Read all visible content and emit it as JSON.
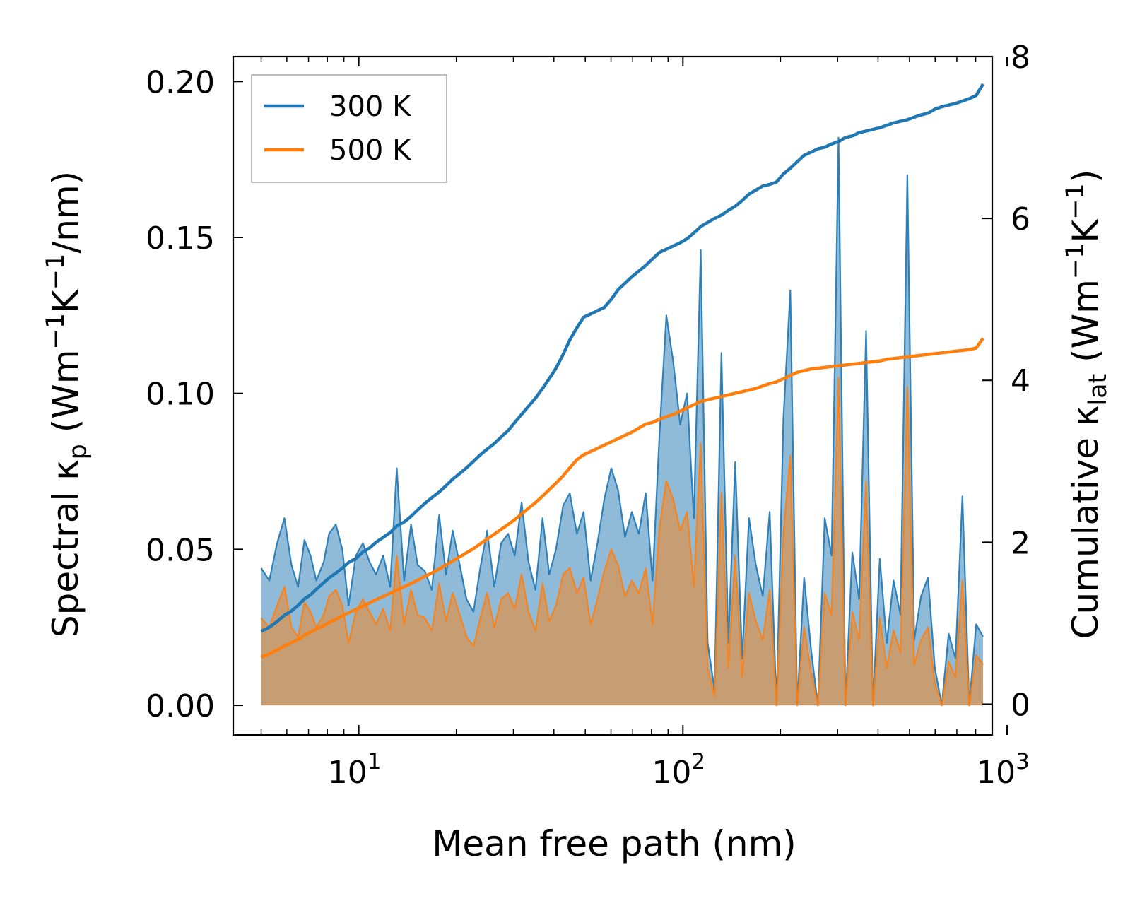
{
  "chart_data": {
    "type": "area+line",
    "xlabel": "Mean free path (nm)",
    "ylabel_left": {
      "main": "Spectral κ",
      "sub": "p",
      "units_prefix": " (Wm",
      "sup1": "−1",
      "mid": "K",
      "sup2": "−1",
      "units_suffix": "/nm)"
    },
    "ylabel_right": {
      "main": "Cumulative κ",
      "sub": "lat",
      "units_prefix": " (Wm",
      "sup1": "−1",
      "mid": "K",
      "sup2": "−1",
      "units_suffix": ")"
    },
    "xscale": "log",
    "xlim": [
      4.1,
      900
    ],
    "ylim_left": [
      -0.0095,
      0.208
    ],
    "ylim_right": [
      -0.38,
      8.0
    ],
    "x_ticks": [
      {
        "value": 10,
        "base": "10",
        "exp": "1"
      },
      {
        "value": 100,
        "base": "10",
        "exp": "2"
      },
      {
        "value": 1000,
        "base": "10",
        "exp": "3"
      }
    ],
    "y_ticks_left": [
      "0.00",
      "0.05",
      "0.10",
      "0.15",
      "0.20"
    ],
    "y_ticks_left_values": [
      0,
      0.05,
      0.1,
      0.15,
      0.2
    ],
    "y_ticks_right": [
      "0",
      "2",
      "4",
      "6",
      "8"
    ],
    "y_ticks_right_values": [
      0,
      2,
      4,
      6,
      8
    ],
    "legend": {
      "position": "top-left",
      "entries": [
        {
          "label": "300 K",
          "color": "#1f77b4"
        },
        {
          "label": "500 K",
          "color": "#ff7f0e"
        }
      ]
    },
    "series": [
      {
        "name": "300 K",
        "color": "#1f77b4",
        "fill_color": "#1f77b4",
        "spectral": {
          "x": [
            5.0,
            5.3,
            5.6,
            5.9,
            6.2,
            6.5,
            6.8,
            7.1,
            7.4,
            7.8,
            8.1,
            8.5,
            8.9,
            9.3,
            9.8,
            10.3,
            10.8,
            11.3,
            11.9,
            12.5,
            13.1,
            13.8,
            14.5,
            15.2,
            16.0,
            16.8,
            17.7,
            18.6,
            19.5,
            20.5,
            21.5,
            22.6,
            23.7,
            24.9,
            26.2,
            27.5,
            28.9,
            30.3,
            31.8,
            33.4,
            35.1,
            36.9,
            38.7,
            40.6,
            42.7,
            44.8,
            47.1,
            49.4,
            51.9,
            54.5,
            57.2,
            60.1,
            63.1,
            66.3,
            69.6,
            73.1,
            76.8,
            80.6,
            84.7,
            88.9,
            93.4,
            98.1,
            103.0,
            108.1,
            113.5,
            119.2,
            125.2,
            131.5,
            138.1,
            145.0,
            152.3,
            159.9,
            167.9,
            176.3,
            185.2,
            194.5,
            204.2,
            214.5,
            225.2,
            236.5,
            248.4,
            260.8,
            273.9,
            287.6,
            302.0,
            317.2,
            333.1,
            349.8,
            367.3,
            385.7,
            405.0,
            425.3,
            446.6,
            469.0,
            492.5,
            517.1,
            543.0,
            570.2,
            598.8,
            628.8,
            660.3,
            693.4,
            728.1,
            764.6,
            802.9,
            843.1
          ],
          "y": [
            0.044,
            0.04,
            0.052,
            0.06,
            0.045,
            0.038,
            0.053,
            0.048,
            0.04,
            0.046,
            0.055,
            0.058,
            0.05,
            0.032,
            0.048,
            0.052,
            0.046,
            0.042,
            0.048,
            0.038,
            0.076,
            0.04,
            0.058,
            0.045,
            0.043,
            0.037,
            0.061,
            0.042,
            0.056,
            0.045,
            0.034,
            0.03,
            0.044,
            0.056,
            0.038,
            0.052,
            0.055,
            0.048,
            0.065,
            0.046,
            0.037,
            0.06,
            0.042,
            0.05,
            0.064,
            0.068,
            0.055,
            0.062,
            0.04,
            0.052,
            0.066,
            0.076,
            0.069,
            0.054,
            0.062,
            0.055,
            0.068,
            0.04,
            0.087,
            0.125,
            0.11,
            0.09,
            0.1,
            0.06,
            0.146,
            0.02,
            0.005,
            0.113,
            0.02,
            0.078,
            0.015,
            0.06,
            0.045,
            0.035,
            0.062,
            0.0,
            0.092,
            0.133,
            0.0,
            0.041,
            0.018,
            0.0,
            0.06,
            0.048,
            0.182,
            0.0,
            0.049,
            0.034,
            0.12,
            0.0,
            0.047,
            0.02,
            0.04,
            0.029,
            0.17,
            0.021,
            0.035,
            0.041,
            0.012,
            0.0,
            0.023,
            0.015,
            0.067,
            0.0,
            0.026,
            0.022
          ]
        },
        "cumulative": {
          "x": [
            5.0,
            5.3,
            5.6,
            5.9,
            6.2,
            6.5,
            6.8,
            7.1,
            7.4,
            7.8,
            8.1,
            8.5,
            8.9,
            9.3,
            9.8,
            10.3,
            10.8,
            11.3,
            11.9,
            12.5,
            13.1,
            13.8,
            14.5,
            15.2,
            16.0,
            16.8,
            17.7,
            18.6,
            19.5,
            20.5,
            21.5,
            22.6,
            23.7,
            24.9,
            26.2,
            27.5,
            28.9,
            30.3,
            31.8,
            33.4,
            35.1,
            36.9,
            38.7,
            40.6,
            42.7,
            44.8,
            47.1,
            49.4,
            51.9,
            54.5,
            57.2,
            60.1,
            63.1,
            66.3,
            69.6,
            73.1,
            76.8,
            80.6,
            84.7,
            88.9,
            93.4,
            98.1,
            103.0,
            108.1,
            113.5,
            119.2,
            125.2,
            131.5,
            138.1,
            145.0,
            152.3,
            159.9,
            167.9,
            176.3,
            185.2,
            194.5,
            204.2,
            214.5,
            225.2,
            236.5,
            248.4,
            260.8,
            273.9,
            287.6,
            302.0,
            317.2,
            333.1,
            349.8,
            367.3,
            385.7,
            405.0,
            425.3,
            446.6,
            469.0,
            492.5,
            517.1,
            543.0,
            570.2,
            598.8,
            628.8,
            660.3,
            693.4,
            728.1,
            764.6,
            802.9,
            843.1
          ],
          "y": [
            0.9,
            0.95,
            1.02,
            1.1,
            1.15,
            1.22,
            1.3,
            1.35,
            1.42,
            1.5,
            1.56,
            1.62,
            1.68,
            1.75,
            1.8,
            1.88,
            1.93,
            2.0,
            2.06,
            2.12,
            2.2,
            2.25,
            2.32,
            2.4,
            2.48,
            2.55,
            2.62,
            2.7,
            2.78,
            2.85,
            2.92,
            3.0,
            3.08,
            3.15,
            3.22,
            3.3,
            3.38,
            3.48,
            3.58,
            3.68,
            3.78,
            3.9,
            4.02,
            4.15,
            4.32,
            4.5,
            4.65,
            4.78,
            4.82,
            4.86,
            4.9,
            5.0,
            5.12,
            5.2,
            5.28,
            5.35,
            5.42,
            5.5,
            5.58,
            5.62,
            5.66,
            5.7,
            5.75,
            5.82,
            5.9,
            5.95,
            6.0,
            6.04,
            6.1,
            6.15,
            6.22,
            6.3,
            6.35,
            6.4,
            6.42,
            6.45,
            6.55,
            6.62,
            6.7,
            6.78,
            6.82,
            6.86,
            6.88,
            6.92,
            6.95,
            7.0,
            7.02,
            7.06,
            7.08,
            7.1,
            7.12,
            7.15,
            7.18,
            7.2,
            7.22,
            7.25,
            7.28,
            7.3,
            7.35,
            7.38,
            7.4,
            7.42,
            7.45,
            7.48,
            7.52,
            7.66
          ]
        }
      },
      {
        "name": "500 K",
        "color": "#ff7f0e",
        "fill_color": "#ff7f0e",
        "spectral": {
          "x": [
            5.0,
            5.3,
            5.6,
            5.9,
            6.2,
            6.5,
            6.8,
            7.1,
            7.4,
            7.8,
            8.1,
            8.5,
            8.9,
            9.3,
            9.8,
            10.3,
            10.8,
            11.3,
            11.9,
            12.5,
            13.1,
            13.8,
            14.5,
            15.2,
            16.0,
            16.8,
            17.7,
            18.6,
            19.5,
            20.5,
            21.5,
            22.6,
            23.7,
            24.9,
            26.2,
            27.5,
            28.9,
            30.3,
            31.8,
            33.4,
            35.1,
            36.9,
            38.7,
            40.6,
            42.7,
            44.8,
            47.1,
            49.4,
            51.9,
            54.5,
            57.2,
            60.1,
            63.1,
            66.3,
            69.6,
            73.1,
            76.8,
            80.6,
            84.7,
            88.9,
            93.4,
            98.1,
            103.0,
            108.1,
            113.5,
            119.2,
            125.2,
            131.5,
            138.1,
            145.0,
            152.3,
            159.9,
            167.9,
            176.3,
            185.2,
            194.5,
            204.2,
            214.5,
            225.2,
            236.5,
            248.4,
            260.8,
            273.9,
            287.6,
            302.0,
            317.2,
            333.1,
            349.8,
            367.3,
            385.7,
            405.0,
            425.3,
            446.6,
            469.0,
            492.5,
            517.1,
            543.0,
            570.2,
            598.8,
            628.8,
            660.3,
            693.4,
            728.1,
            764.6,
            802.9,
            843.1
          ],
          "y": [
            0.028,
            0.025,
            0.032,
            0.038,
            0.025,
            0.022,
            0.033,
            0.03,
            0.025,
            0.029,
            0.035,
            0.037,
            0.032,
            0.02,
            0.03,
            0.034,
            0.03,
            0.026,
            0.031,
            0.024,
            0.048,
            0.026,
            0.037,
            0.029,
            0.028,
            0.024,
            0.039,
            0.027,
            0.036,
            0.029,
            0.022,
            0.019,
            0.028,
            0.036,
            0.025,
            0.034,
            0.036,
            0.031,
            0.042,
            0.03,
            0.024,
            0.039,
            0.027,
            0.032,
            0.042,
            0.044,
            0.036,
            0.041,
            0.026,
            0.034,
            0.043,
            0.05,
            0.045,
            0.035,
            0.04,
            0.036,
            0.044,
            0.026,
            0.057,
            0.072,
            0.066,
            0.056,
            0.062,
            0.038,
            0.084,
            0.012,
            0.003,
            0.068,
            0.012,
            0.048,
            0.009,
            0.036,
            0.027,
            0.021,
            0.037,
            0.0,
            0.055,
            0.08,
            0.0,
            0.025,
            0.011,
            0.0,
            0.036,
            0.029,
            0.105,
            0.0,
            0.03,
            0.021,
            0.072,
            0.0,
            0.028,
            0.012,
            0.024,
            0.017,
            0.102,
            0.013,
            0.021,
            0.025,
            0.007,
            0.0,
            0.014,
            0.009,
            0.04,
            0.0,
            0.016,
            0.013
          ]
        },
        "cumulative": {
          "x": [
            5.0,
            5.3,
            5.6,
            5.9,
            6.2,
            6.5,
            6.8,
            7.1,
            7.4,
            7.8,
            8.1,
            8.5,
            8.9,
            9.3,
            9.8,
            10.3,
            10.8,
            11.3,
            11.9,
            12.5,
            13.1,
            13.8,
            14.5,
            15.2,
            16.0,
            16.8,
            17.7,
            18.6,
            19.5,
            20.5,
            21.5,
            22.6,
            23.7,
            24.9,
            26.2,
            27.5,
            28.9,
            30.3,
            31.8,
            33.4,
            35.1,
            36.9,
            38.7,
            40.6,
            42.7,
            44.8,
            47.1,
            49.4,
            51.9,
            54.5,
            57.2,
            60.1,
            63.1,
            66.3,
            69.6,
            73.1,
            76.8,
            80.6,
            84.7,
            88.9,
            93.4,
            98.1,
            103.0,
            108.1,
            113.5,
            119.2,
            125.2,
            131.5,
            138.1,
            145.0,
            152.3,
            159.9,
            167.9,
            176.3,
            185.2,
            194.5,
            204.2,
            214.5,
            225.2,
            236.5,
            248.4,
            260.8,
            273.9,
            287.6,
            302.0,
            317.2,
            333.1,
            349.8,
            367.3,
            385.7,
            405.0,
            425.3,
            446.6,
            469.0,
            492.5,
            517.1,
            543.0,
            570.2,
            598.8,
            628.8,
            660.3,
            693.4,
            728.1,
            764.6,
            802.9,
            843.1
          ],
          "y": [
            0.58,
            0.62,
            0.67,
            0.72,
            0.76,
            0.8,
            0.85,
            0.89,
            0.93,
            0.97,
            1.01,
            1.05,
            1.09,
            1.13,
            1.17,
            1.21,
            1.25,
            1.29,
            1.33,
            1.37,
            1.41,
            1.45,
            1.49,
            1.53,
            1.58,
            1.62,
            1.67,
            1.72,
            1.77,
            1.82,
            1.87,
            1.92,
            1.98,
            2.04,
            2.1,
            2.16,
            2.22,
            2.28,
            2.35,
            2.42,
            2.49,
            2.57,
            2.65,
            2.73,
            2.82,
            2.92,
            3.02,
            3.08,
            3.12,
            3.16,
            3.2,
            3.24,
            3.28,
            3.32,
            3.36,
            3.41,
            3.46,
            3.48,
            3.52,
            3.55,
            3.58,
            3.62,
            3.66,
            3.7,
            3.74,
            3.76,
            3.78,
            3.8,
            3.82,
            3.84,
            3.86,
            3.88,
            3.9,
            3.93,
            3.96,
            3.98,
            4.02,
            4.06,
            4.1,
            4.12,
            4.14,
            4.15,
            4.16,
            4.17,
            4.18,
            4.19,
            4.2,
            4.21,
            4.22,
            4.23,
            4.24,
            4.26,
            4.27,
            4.28,
            4.29,
            4.3,
            4.31,
            4.32,
            4.33,
            4.34,
            4.35,
            4.36,
            4.37,
            4.38,
            4.4,
            4.52
          ]
        }
      }
    ]
  }
}
